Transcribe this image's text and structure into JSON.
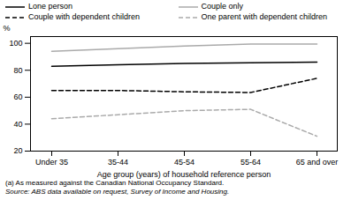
{
  "chart_data": {
    "type": "line",
    "categories": [
      "Under 35",
      "35-44",
      "45-54",
      "55-64",
      "65 and over"
    ],
    "series": [
      {
        "name": "Lone person",
        "color": "#000000",
        "line_style": "solid",
        "values": [
          83,
          84,
          85,
          85.5,
          86
        ]
      },
      {
        "name": "Couple only",
        "color": "#aaaaaa",
        "line_style": "solid",
        "values": [
          94,
          96,
          98,
          99.5,
          99.5
        ]
      },
      {
        "name": "Couple with dependent children",
        "color": "#000000",
        "line_style": "dashed",
        "values": [
          65,
          65,
          64,
          63.5,
          74
        ]
      },
      {
        "name": "One parent with dependent children",
        "color": "#aaaaaa",
        "line_style": "dashed",
        "values": [
          44,
          47,
          50,
          51,
          31
        ]
      }
    ],
    "xlabel": "Age group (years) of household reference person",
    "ylabel": "%",
    "ylim": [
      20,
      105
    ],
    "yticks": [
      20,
      40,
      60,
      80,
      100
    ],
    "legend": "top",
    "annotations": [
      "(a)  As measured against the Canadian National Occupancy Standard.",
      "Source: ABS data available on request, Survey of Income and Housing."
    ]
  }
}
